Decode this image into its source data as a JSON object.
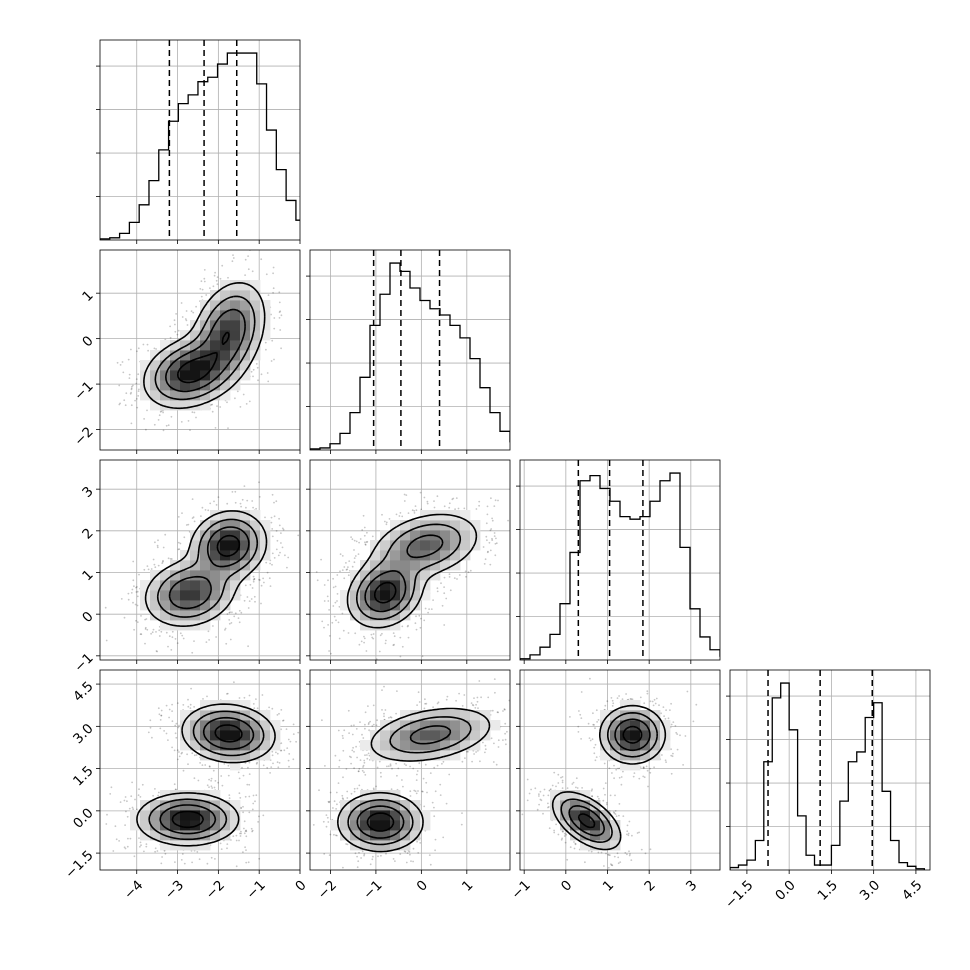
{
  "chart_data": {
    "type": "corner",
    "description_source": "corner plot of a 4-parameter posterior sample",
    "grid": true,
    "parameters": [
      {
        "xlim": [
          -4.9,
          0.0
        ],
        "xticks": [
          -4,
          -3,
          -2,
          -1,
          0
        ],
        "quantiles": [
          -3.2,
          -2.35,
          -1.55
        ],
        "histogram": {
          "bins_start": -4.9,
          "bin_width": 0.24,
          "counts": [
            0.5,
            1,
            3,
            8,
            16,
            27,
            41,
            54,
            62,
            66,
            72,
            74,
            80,
            85,
            85,
            85,
            71,
            50,
            32,
            18,
            9,
            4,
            1.5,
            0.5
          ]
        }
      },
      {
        "ylim": [
          -2.45,
          1.95
        ],
        "yticks": [
          -2,
          -1,
          0,
          1
        ],
        "xlim": [
          -2.45,
          1.95
        ],
        "xticks": [
          -2,
          -1,
          0,
          1
        ],
        "quantiles": [
          -1.05,
          -0.45,
          0.4
        ],
        "histogram": {
          "bins_start": -2.45,
          "bin_width": 0.22,
          "counts": [
            0.5,
            1,
            3,
            8,
            18,
            35,
            60,
            75,
            90,
            86,
            78,
            72,
            68,
            65,
            60,
            54,
            44,
            30,
            18,
            9,
            4,
            1
          ]
        }
      },
      {
        "ylim": [
          -1.1,
          3.7
        ],
        "yticks": [
          -1,
          0,
          1,
          2,
          3
        ],
        "xlim": [
          -1.1,
          3.7
        ],
        "xticks": [
          -1,
          0,
          1,
          2,
          3
        ],
        "quantiles": [
          0.3,
          1.05,
          1.85
        ],
        "histogram": {
          "bins_start": -1.1,
          "bin_width": 0.24,
          "counts": [
            0.5,
            2,
            5,
            10,
            22,
            42,
            70,
            72,
            67,
            62,
            56,
            55,
            56,
            62,
            70,
            73,
            44,
            20,
            9,
            4,
            1.5,
            0.5
          ]
        }
      },
      {
        "ylim": [
          -2.1,
          5.0
        ],
        "yticks": [
          -1.5,
          0.0,
          1.5,
          3.0,
          4.5
        ],
        "ytick_labels": [
          "-1.5",
          "0.0",
          "1.5",
          "3.0",
          "4.5"
        ],
        "xlim": [
          -2.1,
          5.0
        ],
        "xticks": [
          -1.5,
          0.0,
          1.5,
          3.0,
          4.5
        ],
        "xtick_labels": [
          "-1.5",
          "0.0",
          "1.5",
          "3.0",
          "4.5"
        ],
        "quantiles": [
          -0.75,
          1.1,
          2.95
        ],
        "histogram": {
          "bins_start": -2.1,
          "bin_width": 0.3,
          "counts": [
            1,
            2,
            4,
            12,
            44,
            70,
            76,
            57,
            22,
            6,
            2,
            2,
            10,
            28,
            44,
            48,
            62,
            68,
            32,
            12,
            3,
            1.5,
            0.5
          ]
        }
      }
    ],
    "joint_clusters": [
      [
        {
          "mx": -2.7,
          "my": -0.75,
          "sx": 0.55,
          "sy": 0.38,
          "rho": 0.25,
          "w": 0.5
        },
        {
          "mx": -1.75,
          "my": 0.15,
          "sx": 0.45,
          "sy": 0.55,
          "rho": 0.3,
          "w": 0.5
        }
      ],
      [
        {
          "mx": -2.7,
          "my": 0.5,
          "sx": 0.55,
          "sy": 0.4,
          "rho": 0.15,
          "w": 0.5
        },
        {
          "mx": -1.75,
          "my": 1.65,
          "sx": 0.45,
          "sy": 0.4,
          "rho": 0.1,
          "w": 0.5
        }
      ],
      [
        {
          "mx": -0.8,
          "my": 0.5,
          "sx": 0.4,
          "sy": 0.4,
          "rho": 0.2,
          "w": 0.5
        },
        {
          "mx": 0.1,
          "my": 1.65,
          "sx": 0.6,
          "sy": 0.4,
          "rho": 0.3,
          "w": 0.5
        }
      ],
      [
        {
          "mx": -2.75,
          "my": -0.3,
          "sx": 0.6,
          "sy": 0.45,
          "rho": 0.0,
          "w": 0.5
        },
        {
          "mx": -1.75,
          "my": 2.75,
          "sx": 0.55,
          "sy": 0.5,
          "rho": -0.1,
          "w": 0.5
        }
      ],
      [
        {
          "mx": -0.9,
          "my": -0.4,
          "sx": 0.45,
          "sy": 0.5,
          "rho": 0.0,
          "w": 0.5
        },
        {
          "mx": 0.2,
          "my": 2.7,
          "sx": 0.7,
          "sy": 0.5,
          "rho": 0.35,
          "w": 0.5
        }
      ],
      [
        {
          "mx": 0.5,
          "my": -0.35,
          "sx": 0.4,
          "sy": 0.5,
          "rho": -0.55,
          "w": 0.5
        },
        {
          "mx": 1.6,
          "my": 2.7,
          "sx": 0.38,
          "sy": 0.5,
          "rho": 0.0,
          "w": 0.5
        }
      ]
    ],
    "colors": {
      "line": "#000000",
      "density_dark": "#1a1a1a",
      "grid": "#b0b0b0"
    }
  }
}
